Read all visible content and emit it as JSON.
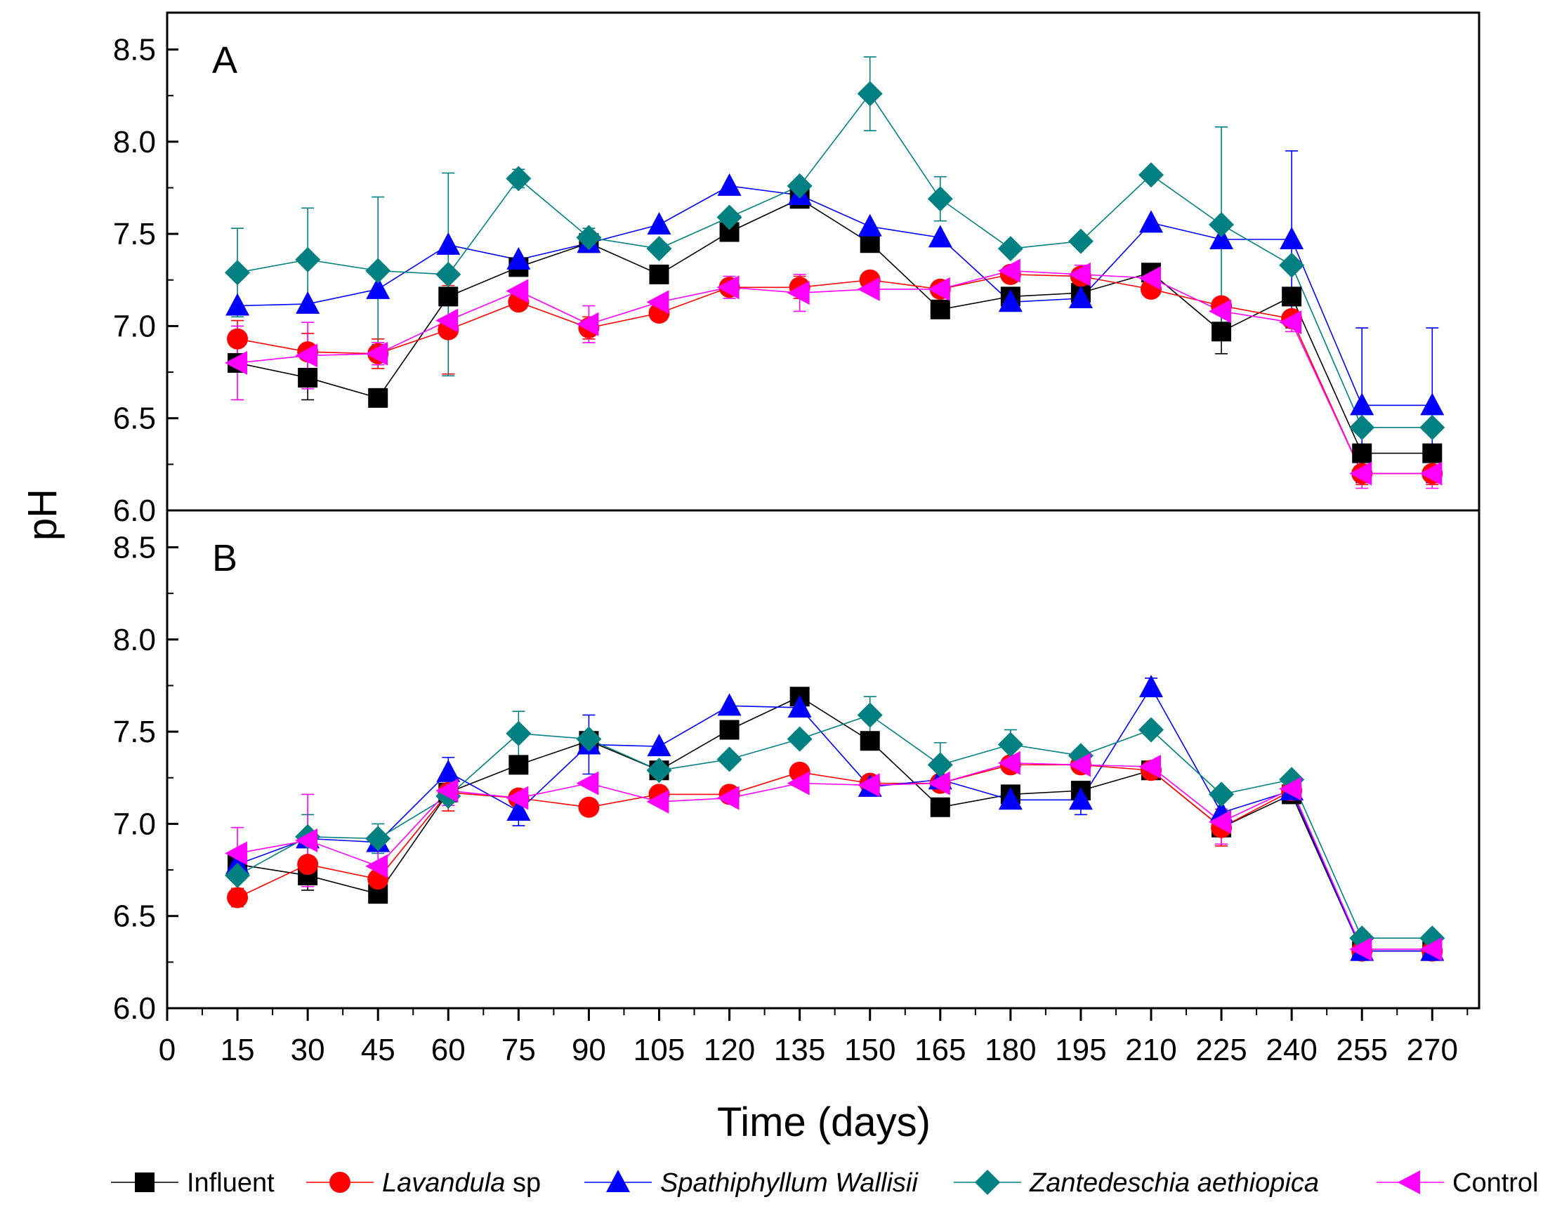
{
  "chart_data": {
    "type": "line",
    "xlabel": "Time (days)",
    "ylabel": "pH",
    "xlim": [
      0,
      280
    ],
    "ylim": [
      6.0,
      8.7
    ],
    "xticks": [
      0,
      15,
      30,
      45,
      60,
      75,
      90,
      105,
      120,
      135,
      150,
      165,
      180,
      195,
      210,
      225,
      240,
      255,
      270
    ],
    "yticks": [
      6.0,
      6.5,
      7.0,
      7.5,
      8.0,
      8.5
    ],
    "x": [
      15,
      30,
      45,
      60,
      75,
      90,
      105,
      120,
      135,
      150,
      165,
      180,
      195,
      210,
      225,
      240,
      255,
      270
    ],
    "legend": [
      {
        "name": "Influent",
        "plain": "Influent",
        "color": "#000000",
        "marker": "square"
      },
      {
        "name": "Lavandula sp",
        "italic": "Lavandula",
        "plain": " sp",
        "color": "#ff0000",
        "marker": "circle"
      },
      {
        "name": "Spathiphyllum Wallisii",
        "italic": "Spathiphyllum Wallisii",
        "plain": "",
        "color": "#0000ff",
        "marker": "triangle-up"
      },
      {
        "name": "Zantedeschia aethiopica",
        "italic": "Zantedeschia aethiopica",
        "plain": "",
        "color": "#008080",
        "marker": "diamond"
      },
      {
        "name": "Control",
        "plain": "Control",
        "color": "#ff00ff",
        "marker": "triangle-left"
      }
    ],
    "panels": [
      {
        "label": "A",
        "series": [
          {
            "name": "Influent",
            "values": [
              6.8,
              6.72,
              6.61,
              7.16,
              7.32,
              7.45,
              7.28,
              7.51,
              7.69,
              7.45,
              7.09,
              7.16,
              7.18,
              7.29,
              6.97,
              7.16,
              6.31,
              6.31
            ],
            "err": [
              0,
              0.12,
              0,
              0,
              0,
              0,
              0,
              0,
              0,
              0,
              0,
              0,
              0,
              0,
              0.12,
              0,
              0,
              0
            ]
          },
          {
            "name": "Lavandula sp",
            "values": [
              6.93,
              6.86,
              6.85,
              6.98,
              7.13,
              6.99,
              7.07,
              7.21,
              7.21,
              7.25,
              7.2,
              7.28,
              7.27,
              7.2,
              7.11,
              7.04,
              6.2,
              6.2
            ],
            "err": [
              0.1,
              0.1,
              0.08,
              0.24,
              0,
              0.06,
              0,
              0,
              0.06,
              0,
              0,
              0,
              0.06,
              0,
              0,
              0,
              0.06,
              0.06
            ]
          },
          {
            "name": "Spathiphyllum Wallisii",
            "values": [
              7.11,
              7.12,
              7.2,
              7.44,
              7.36,
              7.45,
              7.55,
              7.76,
              7.71,
              7.54,
              7.48,
              7.13,
              7.15,
              7.56,
              7.47,
              7.47,
              6.57,
              6.57
            ],
            "err": [
              0,
              0,
              0,
              0,
              0,
              0,
              0,
              0,
              0,
              0,
              0,
              0,
              0,
              0,
              0,
              0.48,
              0.42,
              0.42
            ]
          },
          {
            "name": "Zantedeschia aethiopica",
            "values": [
              7.29,
              7.36,
              7.3,
              7.28,
              7.8,
              7.48,
              7.42,
              7.59,
              7.76,
              8.26,
              7.69,
              7.42,
              7.46,
              7.82,
              7.55,
              7.33,
              6.45,
              6.45
            ],
            "err": [
              0.24,
              0.28,
              0.4,
              0.55,
              0.05,
              0.05,
              0,
              0,
              0,
              0.2,
              0.12,
              0,
              0,
              0,
              0.53,
              0,
              0,
              0
            ]
          },
          {
            "name": "Control",
            "values": [
              6.8,
              6.84,
              6.85,
              7.03,
              7.19,
              7.01,
              7.13,
              7.21,
              7.18,
              7.2,
              7.2,
              7.3,
              7.28,
              7.26,
              7.08,
              7.02,
              6.2,
              6.2
            ],
            "err": [
              0.2,
              0.18,
              0.06,
              0,
              0,
              0.1,
              0,
              0.06,
              0.1,
              0,
              0,
              0,
              0.05,
              0,
              0,
              0.05,
              0.08,
              0.08
            ]
          }
        ]
      },
      {
        "label": "B",
        "series": [
          {
            "name": "Influent",
            "values": [
              6.78,
              6.72,
              6.62,
              7.17,
              7.32,
              7.45,
              7.29,
              7.51,
              7.69,
              7.45,
              7.09,
              7.16,
              7.18,
              7.29,
              6.98,
              7.16,
              6.31,
              6.31
            ],
            "err": [
              0,
              0.08,
              0,
              0,
              0,
              0,
              0,
              0,
              0,
              0,
              0,
              0,
              0,
              0,
              0.05,
              0,
              0,
              0
            ]
          },
          {
            "name": "Lavandula sp",
            "values": [
              6.6,
              6.78,
              6.7,
              7.17,
              7.14,
              7.09,
              7.16,
              7.16,
              7.28,
              7.22,
              7.22,
              7.32,
              7.32,
              7.29,
              6.98,
              7.18,
              6.31,
              6.31
            ],
            "err": [
              0.05,
              0.1,
              0.08,
              0.1,
              0,
              0,
              0,
              0,
              0,
              0,
              0,
              0,
              0,
              0,
              0.1,
              0,
              0,
              0
            ]
          },
          {
            "name": "Spathiphyllum Wallisii",
            "values": [
              6.78,
              6.92,
              6.9,
              7.28,
              7.07,
              7.43,
              7.42,
              7.64,
              7.63,
              7.2,
              7.24,
              7.13,
              7.13,
              7.74,
              7.06,
              7.18,
              6.31,
              6.31
            ],
            "err": [
              0,
              0,
              0,
              0.08,
              0.08,
              0.16,
              0,
              0,
              0,
              0,
              0,
              0,
              0.08,
              0.05,
              0,
              0,
              0,
              0
            ]
          },
          {
            "name": "Zantedeschia aethiopica",
            "values": [
              6.72,
              6.93,
              6.92,
              7.15,
              7.49,
              7.46,
              7.29,
              7.35,
              7.46,
              7.59,
              7.32,
              7.43,
              7.37,
              7.51,
              7.16,
              7.24,
              6.38,
              6.38
            ],
            "err": [
              0,
              0.12,
              0.08,
              0,
              0.12,
              0,
              0,
              0,
              0,
              0.1,
              0.12,
              0.08,
              0,
              0,
              0,
              0,
              0,
              0
            ]
          },
          {
            "name": "Control",
            "values": [
              6.84,
              6.91,
              6.77,
              7.18,
              7.14,
              7.22,
              7.12,
              7.14,
              7.22,
              7.21,
              7.22,
              7.33,
              7.32,
              7.31,
              7.01,
              7.19,
              6.32,
              6.32
            ],
            "err": [
              0.14,
              0.25,
              0.12,
              0.08,
              0,
              0,
              0,
              0,
              0,
              0,
              0,
              0,
              0,
              0,
              0.12,
              0,
              0,
              0
            ]
          }
        ]
      }
    ]
  }
}
